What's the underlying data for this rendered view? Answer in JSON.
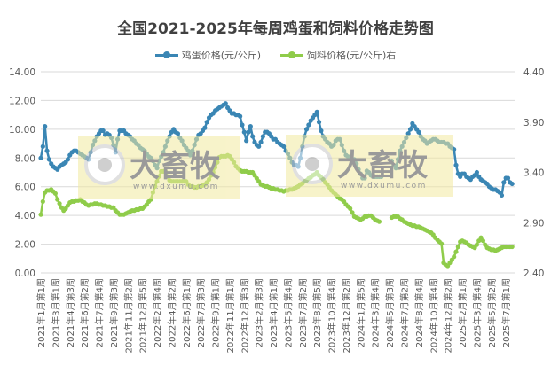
{
  "chart_data": {
    "type": "line",
    "title": "全国2021-2025年每周鸡蛋和饲料价格走势图",
    "xlabel": "",
    "ylabel": "",
    "y_left": {
      "range": [
        0,
        14
      ],
      "ticks": [
        "0.00",
        "2.00",
        "4.00",
        "6.00",
        "8.00",
        "10.00",
        "12.00",
        "14.00"
      ]
    },
    "y_right": {
      "range": [
        2.4,
        4.4
      ],
      "ticks": [
        "2.40",
        "2.90",
        "3.40",
        "3.90",
        "4.40"
      ]
    },
    "grid": true,
    "legend_placement": "top",
    "x_tick_labels": [
      "2021年1月第1周",
      "2021年3月第1周",
      "2021年4月第3周",
      "2021年6月第2周",
      "2021年7月第4周",
      "2021年9月第3周",
      "2021年11月第2周",
      "2021年12月第5周",
      "2022年2月第4周",
      "2022年4月第2周",
      "2022年6月第1周",
      "2022年7月第3周",
      "2022年9月第1周",
      "2022年11月第1周",
      "2022年12月第3周",
      "2023年2月第3周",
      "2023年4月第1周",
      "2023年5月第4周",
      "2023年7月第2周",
      "2023年8月第5周",
      "2023年10月第4周",
      "2023年12月第2周",
      "2024年1月第5周",
      "2024年3月第4周",
      "2024年5月第3周",
      "2024年7月第2周",
      "2024年8月第4周",
      "2024年10月第4周",
      "2024年12月第2周",
      "2025年2月第1周",
      "2025年3月第4周",
      "2025年5月第2周",
      "2025年7月第1周"
    ],
    "x_tick_every_weeks": 7,
    "series": [
      {
        "name": "鸡蛋价格(元/公斤)",
        "axis": "left",
        "color": "#3a86b4",
        "values": [
          8.0,
          8.8,
          10.2,
          8.5,
          7.9,
          7.6,
          7.4,
          7.3,
          7.2,
          7.4,
          7.5,
          7.6,
          7.7,
          7.9,
          8.2,
          8.4,
          8.5,
          8.5,
          8.4,
          8.3,
          8.2,
          8.1,
          8.0,
          7.9,
          8.4,
          8.9,
          9.2,
          9.5,
          9.7,
          9.9,
          9.9,
          9.6,
          9.7,
          9.6,
          9.4,
          8.9,
          8.4,
          9.3,
          9.9,
          9.9,
          9.9,
          9.7,
          9.6,
          9.5,
          9.3,
          9.2,
          9.0,
          8.9,
          8.7,
          8.6,
          8.5,
          8.3,
          8.1,
          8.0,
          7.8,
          7.5,
          7.3,
          7.8,
          8.1,
          8.4,
          8.8,
          9.2,
          9.5,
          9.8,
          10.0,
          9.8,
          9.7,
          9.4,
          9.2,
          8.9,
          8.7,
          8.5,
          8.2,
          8.5,
          8.9,
          9.3,
          9.6,
          9.7,
          9.9,
          10.1,
          10.5,
          10.8,
          11.0,
          11.1,
          11.3,
          11.4,
          11.5,
          11.6,
          11.7,
          11.8,
          11.5,
          11.3,
          11.1,
          11.1,
          11.0,
          11.0,
          10.9,
          10.3,
          9.8,
          9.2,
          9.8,
          10.2,
          9.5,
          9.1,
          8.9,
          8.8,
          9.1,
          9.5,
          9.8,
          9.8,
          9.7,
          9.5,
          9.3,
          9.3,
          9.1,
          9.0,
          8.9,
          8.8,
          8.5,
          8.3,
          8.0,
          7.7,
          7.5,
          7.5,
          7.4,
          8.0,
          8.8,
          9.5,
          10.0,
          10.3,
          10.6,
          10.8,
          11.0,
          11.2,
          10.5,
          9.9,
          9.5,
          9.3,
          9.1,
          9.0,
          8.8,
          8.9,
          9.2,
          9.3,
          9.3,
          8.9,
          8.5,
          8.2,
          8.1,
          8.0,
          7.9,
          7.9,
          7.6,
          7.2,
          6.9,
          6.6,
          6.6,
          7.1,
          7.0,
          6.8,
          6.7,
          6.7,
          6.7,
          6.7,
          6.7,
          null,
          null,
          null,
          null,
          7.8,
          7.5,
          7.3,
          7.9,
          8.5,
          8.8,
          9.1,
          9.4,
          9.7,
          10.0,
          10.4,
          10.2,
          10.0,
          9.8,
          9.5,
          9.3,
          9.2,
          9.0,
          9.1,
          9.2,
          9.3,
          9.3,
          9.2,
          9.1,
          9.1,
          9.1,
          9.0,
          9.0,
          8.8,
          8.7,
          8.6,
          7.5,
          6.9,
          6.7,
          6.9,
          6.9,
          6.7,
          6.6,
          6.5,
          6.7,
          6.8,
          7.0,
          6.7,
          6.5,
          6.4,
          6.3,
          6.2,
          6.0,
          5.9,
          5.8,
          5.8,
          5.7,
          5.6,
          5.4,
          6.3,
          6.6,
          6.6,
          6.3,
          6.2
        ]
      },
      {
        "name": "饲料价格(元/公斤)右",
        "axis": "right",
        "color": "#8fcc4a",
        "values": [
          2.98,
          3.11,
          3.2,
          3.22,
          3.22,
          3.23,
          3.21,
          3.19,
          3.13,
          3.09,
          3.05,
          3.02,
          3.04,
          3.07,
          3.1,
          3.11,
          3.11,
          3.12,
          3.12,
          3.13,
          3.11,
          3.1,
          3.08,
          3.07,
          3.08,
          3.08,
          3.09,
          3.09,
          3.08,
          3.08,
          3.07,
          3.07,
          3.06,
          3.06,
          3.05,
          3.05,
          3.02,
          3.0,
          2.98,
          2.98,
          2.98,
          2.99,
          3.0,
          3.01,
          3.02,
          3.02,
          3.03,
          3.03,
          3.04,
          3.04,
          3.06,
          3.08,
          3.11,
          3.13,
          3.2,
          3.26,
          3.31,
          3.36,
          3.41,
          3.41,
          3.41,
          3.36,
          3.32,
          3.31,
          3.31,
          3.31,
          3.31,
          3.31,
          3.31,
          3.31,
          3.31,
          3.28,
          3.26,
          3.26,
          3.25,
          3.25,
          3.26,
          3.26,
          3.27,
          3.28,
          3.3,
          3.33,
          3.37,
          3.4,
          3.45,
          3.5,
          3.55,
          3.56,
          3.56,
          3.56,
          3.57,
          3.56,
          3.53,
          3.5,
          3.46,
          3.44,
          3.42,
          3.41,
          3.41,
          3.41,
          3.4,
          3.4,
          3.4,
          3.37,
          3.34,
          3.31,
          3.28,
          3.27,
          3.26,
          3.26,
          3.25,
          3.24,
          3.24,
          3.23,
          3.23,
          3.22,
          3.22,
          3.21,
          3.22,
          3.22,
          3.23,
          3.23,
          3.24,
          3.25,
          3.26,
          3.28,
          3.29,
          3.31,
          3.32,
          3.34,
          3.35,
          3.37,
          3.38,
          3.4,
          3.37,
          3.35,
          3.33,
          3.3,
          3.28,
          3.25,
          3.22,
          3.2,
          3.18,
          3.16,
          3.14,
          3.13,
          3.11,
          3.08,
          3.06,
          3.04,
          3.0,
          2.96,
          2.95,
          2.94,
          2.93,
          2.94,
          2.96,
          2.96,
          2.97,
          2.97,
          2.95,
          2.93,
          2.92,
          2.91,
          null,
          null,
          null,
          null,
          null,
          2.95,
          2.96,
          2.96,
          2.96,
          2.94,
          2.93,
          2.91,
          2.9,
          2.89,
          2.88,
          2.87,
          2.87,
          2.86,
          2.86,
          2.85,
          2.84,
          2.83,
          2.82,
          2.81,
          2.8,
          2.78,
          2.75,
          2.73,
          2.71,
          2.69,
          2.5,
          2.48,
          2.47,
          2.5,
          2.53,
          2.56,
          2.61,
          2.66,
          2.71,
          2.72,
          2.71,
          2.7,
          2.68,
          2.67,
          2.66,
          2.65,
          2.68,
          2.72,
          2.75,
          2.72,
          2.68,
          2.65,
          2.64,
          2.63,
          2.63,
          2.62,
          2.63,
          2.64,
          2.65,
          2.66,
          2.66,
          2.66,
          2.66,
          2.66
        ]
      }
    ]
  },
  "watermark": {
    "brand": "大畜牧",
    "url": "www.dxumu.com"
  }
}
